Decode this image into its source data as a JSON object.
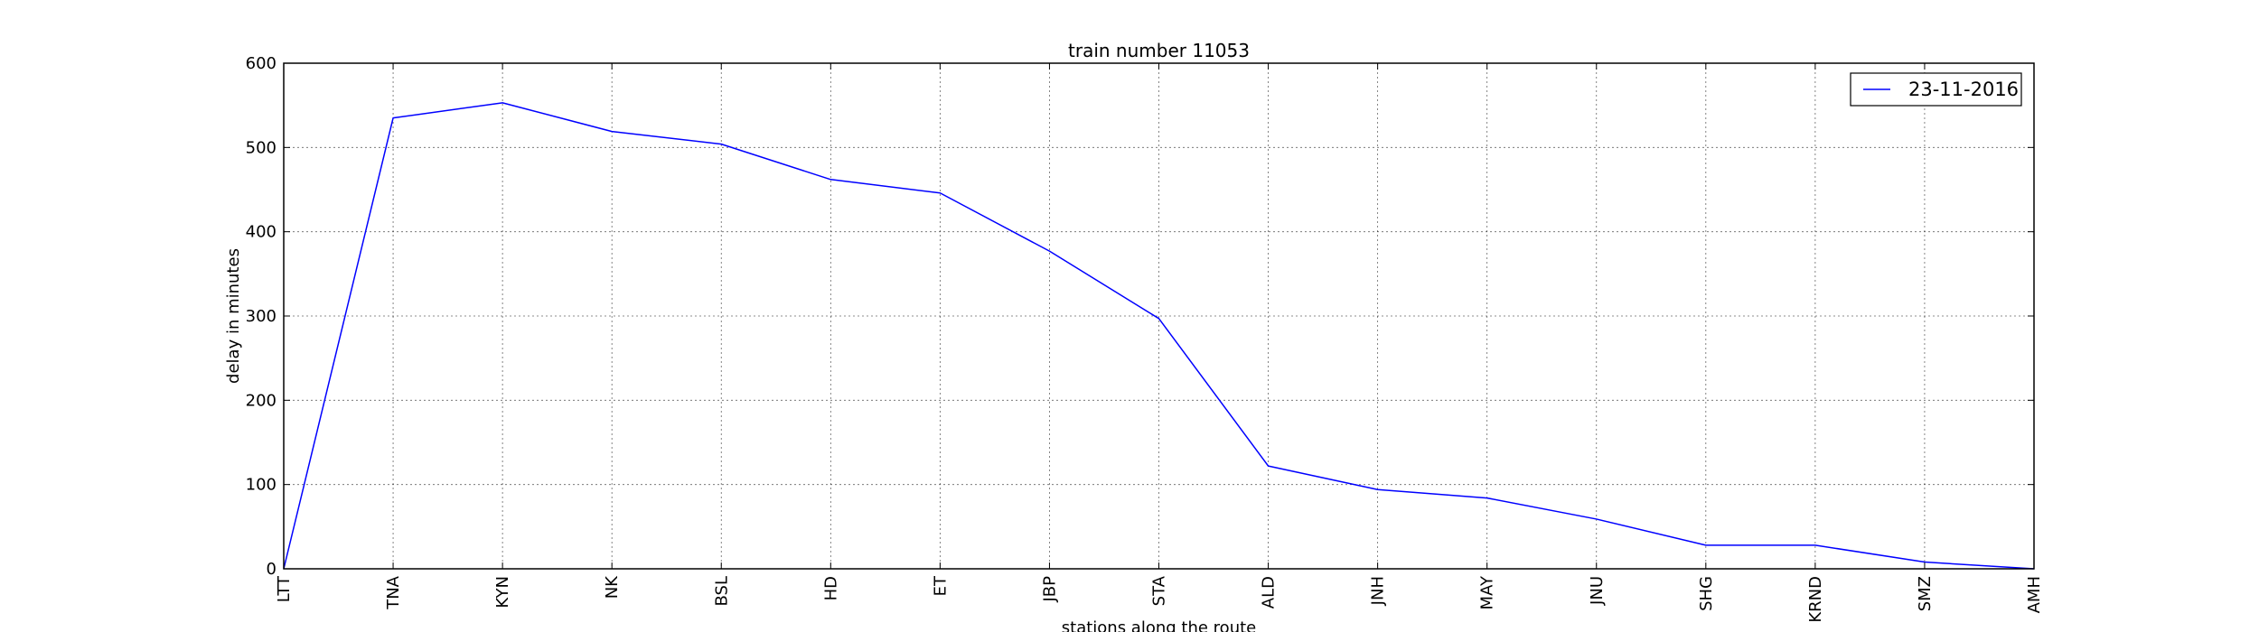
{
  "chart_data": {
    "type": "line",
    "title": "train number 11053",
    "xlabel": "stations along the route",
    "ylabel": "delay in minutes",
    "categories": [
      "LTT",
      "TNA",
      "KYN",
      "NK",
      "BSL",
      "HD",
      "ET",
      "JBP",
      "STA",
      "ALD",
      "JNH",
      "MAY",
      "JNU",
      "SHG",
      "KRND",
      "SMZ",
      "AMH"
    ],
    "ylim": [
      0,
      600
    ],
    "yticks": [
      0,
      100,
      200,
      300,
      400,
      500,
      600
    ],
    "grid": true,
    "legend_position": "top-right",
    "series": [
      {
        "name": "23-11-2016",
        "color": "#0000ff",
        "values": [
          0,
          535,
          553,
          519,
          504,
          462,
          446,
          377,
          297,
          122,
          94,
          84,
          59,
          28,
          28,
          8,
          0
        ]
      }
    ]
  }
}
